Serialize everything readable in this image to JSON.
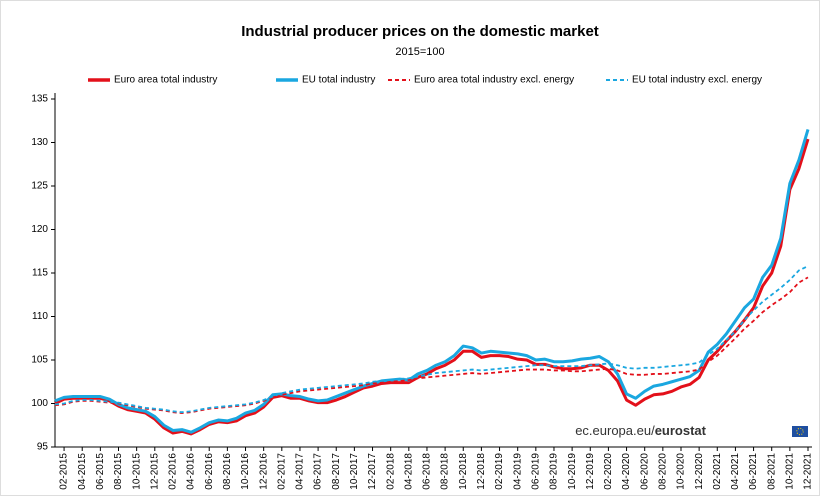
{
  "chart_data": {
    "type": "line",
    "title": "Industrial producer prices on the domestic market",
    "subtitle": "2015=100",
    "source": "ec.europa.eu/",
    "source_brand": "eurostat",
    "categories": [
      null,
      "02-2015",
      null,
      "04-2015",
      null,
      "06-2015",
      null,
      "08-2015",
      null,
      "10-2015",
      null,
      "12-2015",
      null,
      "02-2016",
      null,
      "04-2016",
      null,
      "06-2016",
      null,
      "08-2016",
      null,
      "10-2016",
      null,
      "12-2016",
      null,
      "02-2017",
      null,
      "04-2017",
      null,
      "06-2017",
      null,
      "08-2017",
      null,
      "10-2017",
      null,
      "12-2017",
      null,
      "02-2018",
      null,
      "04-2018",
      null,
      "06-2018",
      null,
      "08-2018",
      null,
      "10-2018",
      null,
      "12-2018",
      null,
      "02-2019",
      null,
      "04-2019",
      null,
      "06-2019",
      null,
      "08-2019",
      null,
      "10-2019",
      null,
      "12-2019",
      null,
      "02-2020",
      null,
      "04-2020",
      null,
      "06-2020",
      null,
      "08-2020",
      null,
      "10-2020",
      null,
      "12-2020",
      null,
      "02-2021",
      null,
      "04-2021",
      null,
      "06-2021",
      null,
      "08-2021",
      null,
      "10-2021",
      null,
      "12-2021"
    ],
    "series": [
      {
        "name": "Euro area total industry",
        "color": "#e3101a",
        "dashed": false,
        "values": [
          100.0,
          100.5,
          100.6,
          100.6,
          100.6,
          100.6,
          100.3,
          99.7,
          99.3,
          99.1,
          98.9,
          98.2,
          97.2,
          96.6,
          96.8,
          96.5,
          97.0,
          97.6,
          97.9,
          97.8,
          98.0,
          98.6,
          98.9,
          99.6,
          100.7,
          100.9,
          100.6,
          100.6,
          100.3,
          100.1,
          100.1,
          100.4,
          100.8,
          101.3,
          101.8,
          102.0,
          102.3,
          102.4,
          102.4,
          102.4,
          103.0,
          103.4,
          104.0,
          104.4,
          105.0,
          106.0,
          106.0,
          105.3,
          105.5,
          105.5,
          105.4,
          105.1,
          105.0,
          104.5,
          104.5,
          104.2,
          104.0,
          104.0,
          104.1,
          104.4,
          104.4,
          103.8,
          102.6,
          100.4,
          99.8,
          100.5,
          101.0,
          101.1,
          101.4,
          101.9,
          102.2,
          103.0,
          105.0,
          106.0,
          107.2,
          108.3,
          109.6,
          111.0,
          113.5,
          115.0,
          118.1,
          124.6,
          127.0,
          130.4
        ]
      },
      {
        "name": "EU total industry",
        "color": "#1aa7e0",
        "dashed": false,
        "values": [
          100.3,
          100.7,
          100.8,
          100.8,
          100.8,
          100.8,
          100.5,
          99.9,
          99.5,
          99.3,
          99.1,
          98.5,
          97.5,
          96.9,
          97.0,
          96.7,
          97.2,
          97.8,
          98.1,
          98.0,
          98.3,
          98.9,
          99.2,
          99.9,
          101.0,
          101.1,
          100.9,
          100.8,
          100.5,
          100.3,
          100.4,
          100.8,
          101.2,
          101.6,
          102.0,
          102.3,
          102.6,
          102.7,
          102.8,
          102.7,
          103.4,
          103.8,
          104.4,
          104.8,
          105.5,
          106.6,
          106.4,
          105.8,
          106.0,
          105.9,
          105.8,
          105.7,
          105.5,
          105.0,
          105.1,
          104.8,
          104.8,
          104.9,
          105.1,
          105.2,
          105.4,
          104.8,
          103.4,
          101.1,
          100.6,
          101.4,
          102.0,
          102.2,
          102.5,
          102.8,
          103.1,
          103.8,
          105.9,
          106.8,
          108.0,
          109.5,
          111.0,
          112.0,
          114.5,
          115.9,
          119.0,
          125.3,
          128.0,
          131.5
        ]
      },
      {
        "name": "Euro area total industry excl. energy",
        "color": "#e3101a",
        "dashed": true,
        "values": [
          99.8,
          99.9,
          100.2,
          100.3,
          100.3,
          100.2,
          100.1,
          100.0,
          99.8,
          99.6,
          99.4,
          99.3,
          99.2,
          99.0,
          98.9,
          99.0,
          99.2,
          99.4,
          99.5,
          99.6,
          99.7,
          99.8,
          100.0,
          100.3,
          100.7,
          101.0,
          101.2,
          101.4,
          101.5,
          101.6,
          101.7,
          101.8,
          101.9,
          102.0,
          102.1,
          102.3,
          102.4,
          102.5,
          102.6,
          102.7,
          102.9,
          103.0,
          103.1,
          103.2,
          103.3,
          103.4,
          103.5,
          103.4,
          103.5,
          103.6,
          103.7,
          103.8,
          103.9,
          103.9,
          103.9,
          103.8,
          103.8,
          103.7,
          103.7,
          103.8,
          103.9,
          104.0,
          103.8,
          103.4,
          103.3,
          103.3,
          103.4,
          103.4,
          103.5,
          103.6,
          103.7,
          103.9,
          104.8,
          105.5,
          106.5,
          107.5,
          108.6,
          109.5,
          110.5,
          111.3,
          112.0,
          112.8,
          113.9,
          114.5
        ]
      },
      {
        "name": "EU total industry excl. energy",
        "color": "#1aa7e0",
        "dashed": true,
        "values": [
          99.9,
          100.0,
          100.3,
          100.4,
          100.4,
          100.3,
          100.2,
          100.1,
          99.9,
          99.7,
          99.5,
          99.4,
          99.3,
          99.1,
          99.0,
          99.1,
          99.3,
          99.5,
          99.6,
          99.7,
          99.8,
          99.9,
          100.1,
          100.4,
          100.8,
          101.2,
          101.4,
          101.6,
          101.7,
          101.8,
          101.9,
          102.0,
          102.1,
          102.2,
          102.3,
          102.5,
          102.6,
          102.7,
          102.8,
          102.9,
          103.1,
          103.3,
          103.5,
          103.6,
          103.7,
          103.8,
          103.9,
          103.8,
          103.9,
          104.0,
          104.1,
          104.2,
          104.3,
          104.4,
          104.4,
          104.3,
          104.3,
          104.3,
          104.3,
          104.4,
          104.5,
          104.6,
          104.4,
          104.1,
          104.0,
          104.1,
          104.1,
          104.2,
          104.3,
          104.4,
          104.5,
          104.7,
          105.6,
          106.3,
          107.3,
          108.3,
          109.6,
          110.7,
          111.7,
          112.5,
          113.3,
          114.2,
          115.3,
          115.8
        ]
      }
    ],
    "ylim": [
      95,
      135
    ],
    "yticks": [
      95,
      100,
      105,
      110,
      115,
      120,
      125,
      130,
      135
    ],
    "grid": false
  }
}
